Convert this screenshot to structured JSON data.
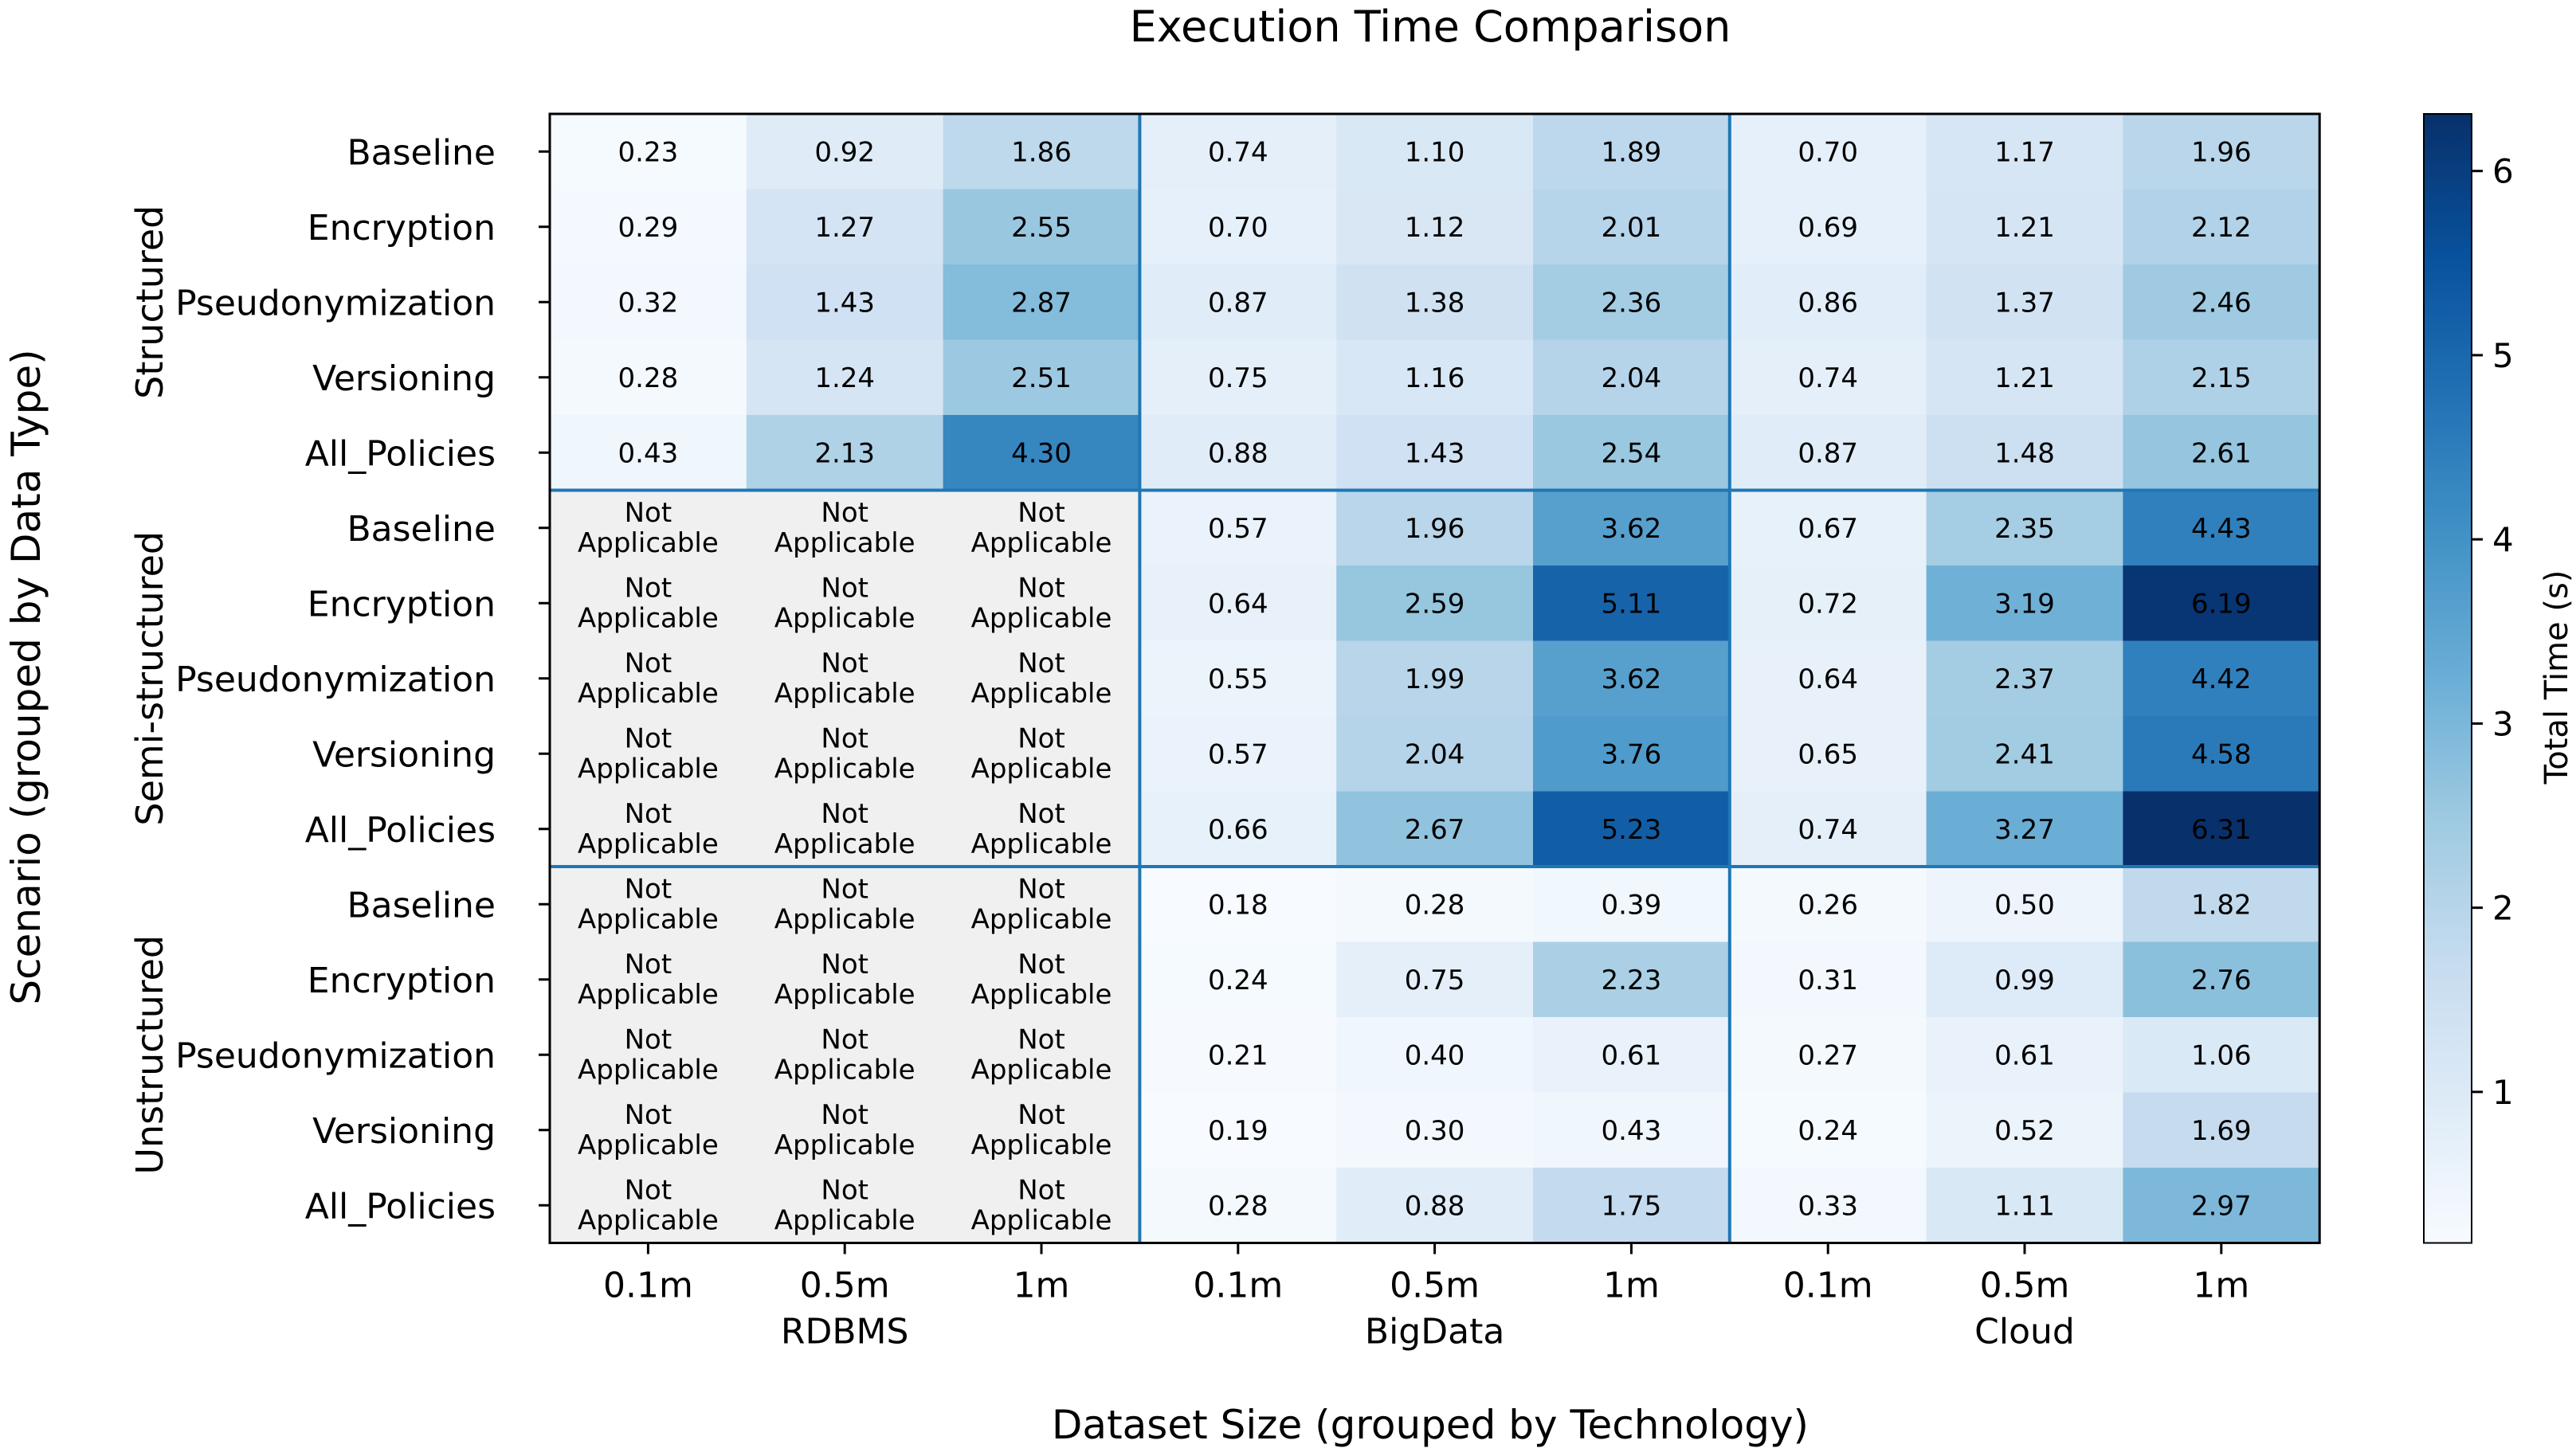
{
  "chart_data": {
    "type": "heatmap",
    "title": "Execution Time Comparison",
    "xlabel": "Dataset Size (grouped by Technology)",
    "ylabel": "Scenario (grouped by Data Type)",
    "colorbar_label": "Total Time (s)",
    "colorbar_range": [
      0.18,
      6.31
    ],
    "colorbar_ticks": [
      "1",
      "2",
      "3",
      "4",
      "5",
      "6"
    ],
    "colormap": "Blues",
    "not_applicable_label": "Not Applicable",
    "not_applicable_color": "#f0f0f0",
    "group_line_color": "#1f77b4",
    "x_groups": [
      {
        "name": "RDBMS",
        "sizes": [
          "0.1m",
          "0.5m",
          "1m"
        ]
      },
      {
        "name": "BigData",
        "sizes": [
          "0.1m",
          "0.5m",
          "1m"
        ]
      },
      {
        "name": "Cloud",
        "sizes": [
          "0.1m",
          "0.5m",
          "1m"
        ]
      }
    ],
    "y_groups": [
      {
        "name": "Structured",
        "scenarios": [
          "Baseline",
          "Encryption",
          "Pseudonymization",
          "Versioning",
          "All_Policies"
        ]
      },
      {
        "name": "Semi-structured",
        "scenarios": [
          "Baseline",
          "Encryption",
          "Pseudonymization",
          "Versioning",
          "All_Policies"
        ]
      },
      {
        "name": "Unstructured",
        "scenarios": [
          "Baseline",
          "Encryption",
          "Pseudonymization",
          "Versioning",
          "All_Policies"
        ]
      }
    ],
    "values": [
      [
        0.23,
        0.92,
        1.86,
        0.74,
        1.1,
        1.89,
        0.7,
        1.17,
        1.96
      ],
      [
        0.29,
        1.27,
        2.55,
        0.7,
        1.12,
        2.01,
        0.69,
        1.21,
        2.12
      ],
      [
        0.32,
        1.43,
        2.87,
        0.87,
        1.38,
        2.36,
        0.86,
        1.37,
        2.46
      ],
      [
        0.28,
        1.24,
        2.51,
        0.75,
        1.16,
        2.04,
        0.74,
        1.21,
        2.15
      ],
      [
        0.43,
        2.13,
        4.3,
        0.88,
        1.43,
        2.54,
        0.87,
        1.48,
        2.61
      ],
      [
        null,
        null,
        null,
        0.57,
        1.96,
        3.62,
        0.67,
        2.35,
        4.43
      ],
      [
        null,
        null,
        null,
        0.64,
        2.59,
        5.11,
        0.72,
        3.19,
        6.19
      ],
      [
        null,
        null,
        null,
        0.55,
        1.99,
        3.62,
        0.64,
        2.37,
        4.42
      ],
      [
        null,
        null,
        null,
        0.57,
        2.04,
        3.76,
        0.65,
        2.41,
        4.58
      ],
      [
        null,
        null,
        null,
        0.66,
        2.67,
        5.23,
        0.74,
        3.27,
        6.31
      ],
      [
        null,
        null,
        null,
        0.18,
        0.28,
        0.39,
        0.26,
        0.5,
        1.82
      ],
      [
        null,
        null,
        null,
        0.24,
        0.75,
        2.23,
        0.31,
        0.99,
        2.76
      ],
      [
        null,
        null,
        null,
        0.21,
        0.4,
        0.61,
        0.27,
        0.61,
        1.06
      ],
      [
        null,
        null,
        null,
        0.19,
        0.3,
        0.43,
        0.24,
        0.52,
        1.69
      ],
      [
        null,
        null,
        null,
        0.28,
        0.88,
        1.75,
        0.33,
        1.11,
        2.97
      ]
    ]
  }
}
